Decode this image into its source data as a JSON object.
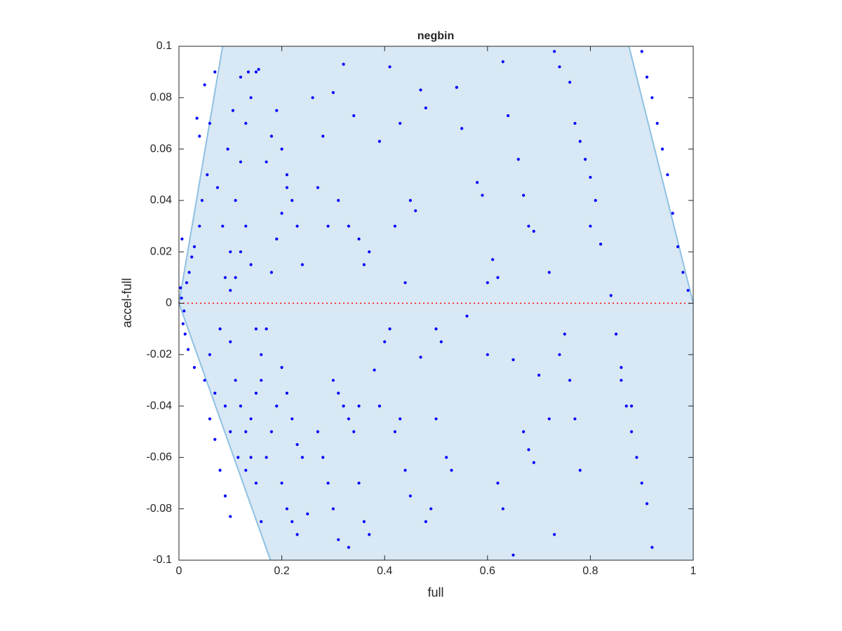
{
  "chart_data": {
    "type": "scatter",
    "title": "negbin",
    "x_label": "full",
    "y_label": "accel-full",
    "xlim": [
      0,
      1
    ],
    "ylim": [
      -0.1,
      0.1
    ],
    "xticks": [
      0,
      0.2,
      0.4,
      0.6,
      0.8,
      1
    ],
    "yticks": [
      -0.1,
      -0.08,
      -0.06,
      -0.04,
      -0.02,
      0,
      0.02,
      0.04,
      0.06,
      0.08,
      0.1
    ],
    "color": "#0000ff",
    "region": {
      "x": [
        0,
        0.085,
        0.875,
        1,
        1,
        0.178
      ],
      "y": [
        0,
        0.1,
        0.1,
        0,
        -0.1,
        -0.1
      ],
      "color": "#d8e8f4",
      "edge_color": "#8fc1e3"
    },
    "reference_line": {
      "y": 0,
      "color": "#ff0000"
    },
    "x": [
      0.005,
      0.01,
      0.003,
      0.015,
      0.008,
      0.02,
      0.012,
      0.025,
      0.018,
      0.03,
      0.006,
      0.04,
      0.03,
      0.045,
      0.05,
      0.055,
      0.04,
      0.06,
      0.05,
      0.07,
      0.035,
      0.06,
      0.07,
      0.08,
      0.09,
      0.1,
      0.06,
      0.07,
      0.08,
      0.09,
      0.1,
      0.11,
      0.12,
      0.13,
      0.14,
      0.15,
      0.11,
      0.12,
      0.13,
      0.14,
      0.15,
      0.16,
      0.1,
      0.085,
      0.075,
      0.095,
      0.105,
      0.12,
      0.135,
      0.155,
      0.09,
      0.1,
      0.115,
      0.13,
      0.14,
      0.15,
      0.16,
      0.17,
      0.18,
      0.19,
      0.2,
      0.21,
      0.22,
      0.23,
      0.24,
      0.17,
      0.18,
      0.19,
      0.2,
      0.21,
      0.2,
      0.21,
      0.22,
      0.23,
      0.24,
      0.2,
      0.21,
      0.22,
      0.23,
      0.25,
      0.19,
      0.18,
      0.17,
      0.16,
      0.15,
      0.14,
      0.13,
      0.12,
      0.11,
      0.1,
      0.26,
      0.28,
      0.3,
      0.32,
      0.27,
      0.29,
      0.31,
      0.33,
      0.35,
      0.36,
      0.37,
      0.3,
      0.31,
      0.32,
      0.33,
      0.34,
      0.35,
      0.27,
      0.28,
      0.29,
      0.3,
      0.31,
      0.33,
      0.36,
      0.37,
      0.35,
      0.34,
      0.39,
      0.41,
      0.42,
      0.43,
      0.44,
      0.45,
      0.46,
      0.47,
      0.48,
      0.4,
      0.41,
      0.38,
      0.39,
      0.42,
      0.43,
      0.44,
      0.45,
      0.47,
      0.48,
      0.5,
      0.51,
      0.52,
      0.53,
      0.5,
      0.49,
      0.54,
      0.55,
      0.56,
      0.58,
      0.59,
      0.6,
      0.61,
      0.62,
      0.6,
      0.62,
      0.63,
      0.65,
      0.64,
      0.63,
      0.65,
      0.66,
      0.67,
      0.68,
      0.69,
      0.67,
      0.68,
      0.69,
      0.7,
      0.72,
      0.73,
      0.72,
      0.74,
      0.73,
      0.74,
      0.76,
      0.77,
      0.78,
      0.79,
      0.8,
      0.81,
      0.8,
      0.82,
      0.76,
      0.77,
      0.78,
      0.75,
      0.84,
      0.85,
      0.86,
      0.87,
      0.88,
      0.89,
      0.9,
      0.91,
      0.92,
      0.9,
      0.91,
      0.92,
      0.93,
      0.94,
      0.95,
      0.96,
      0.97,
      0.98,
      0.99,
      0.86,
      0.88
    ],
    "values": [
      0.002,
      -0.003,
      0.006,
      0.008,
      -0.008,
      0.012,
      -0.012,
      0.018,
      -0.018,
      0.022,
      0.025,
      0.03,
      -0.025,
      0.04,
      -0.03,
      0.05,
      0.065,
      0.07,
      0.085,
      0.09,
      0.072,
      -0.045,
      -0.053,
      -0.065,
      -0.075,
      -0.083,
      -0.02,
      -0.035,
      -0.01,
      0.01,
      0.02,
      0.04,
      0.055,
      0.07,
      0.08,
      0.09,
      -0.03,
      -0.04,
      -0.05,
      -0.06,
      -0.07,
      -0.085,
      0.005,
      0.03,
      0.045,
      0.06,
      0.075,
      0.088,
      0.09,
      0.091,
      -0.04,
      -0.05,
      -0.06,
      -0.065,
      -0.045,
      -0.035,
      -0.02,
      -0.01,
      0.012,
      0.025,
      0.035,
      0.045,
      0.04,
      0.03,
      0.015,
      0.055,
      0.065,
      0.075,
      0.06,
      0.05,
      -0.025,
      -0.035,
      -0.045,
      -0.055,
      -0.06,
      -0.07,
      -0.08,
      -0.085,
      -0.09,
      -0.082,
      -0.04,
      -0.05,
      -0.06,
      -0.03,
      -0.01,
      0.015,
      0.03,
      0.02,
      0.01,
      -0.015,
      0.08,
      0.065,
      0.082,
      0.093,
      0.045,
      0.03,
      0.04,
      0.03,
      0.025,
      0.015,
      0.02,
      -0.03,
      -0.035,
      -0.04,
      -0.045,
      -0.05,
      -0.04,
      -0.05,
      -0.06,
      -0.07,
      -0.08,
      -0.092,
      -0.095,
      -0.085,
      -0.09,
      -0.07,
      0.073,
      0.063,
      0.092,
      0.03,
      0.07,
      0.008,
      0.04,
      0.036,
      0.083,
      0.076,
      -0.015,
      -0.01,
      -0.026,
      -0.04,
      -0.05,
      -0.045,
      -0.065,
      -0.075,
      -0.021,
      -0.085,
      -0.01,
      -0.015,
      -0.06,
      -0.065,
      -0.045,
      -0.08,
      0.084,
      0.068,
      -0.005,
      0.047,
      0.042,
      -0.02,
      0.017,
      0.01,
      0.008,
      -0.07,
      -0.08,
      -0.098,
      0.073,
      0.094,
      -0.022,
      0.056,
      0.042,
      0.03,
      0.028,
      -0.05,
      -0.057,
      -0.062,
      -0.028,
      -0.045,
      -0.09,
      0.012,
      -0.02,
      0.098,
      0.092,
      0.086,
      0.07,
      0.063,
      0.056,
      0.049,
      0.04,
      0.03,
      0.023,
      -0.03,
      -0.045,
      -0.065,
      -0.012,
      0.003,
      -0.012,
      -0.03,
      -0.04,
      -0.05,
      -0.06,
      -0.07,
      -0.078,
      -0.095,
      0.098,
      0.088,
      0.08,
      0.07,
      0.06,
      0.05,
      0.035,
      0.022,
      0.012,
      0.005,
      -0.025,
      -0.04
    ]
  }
}
